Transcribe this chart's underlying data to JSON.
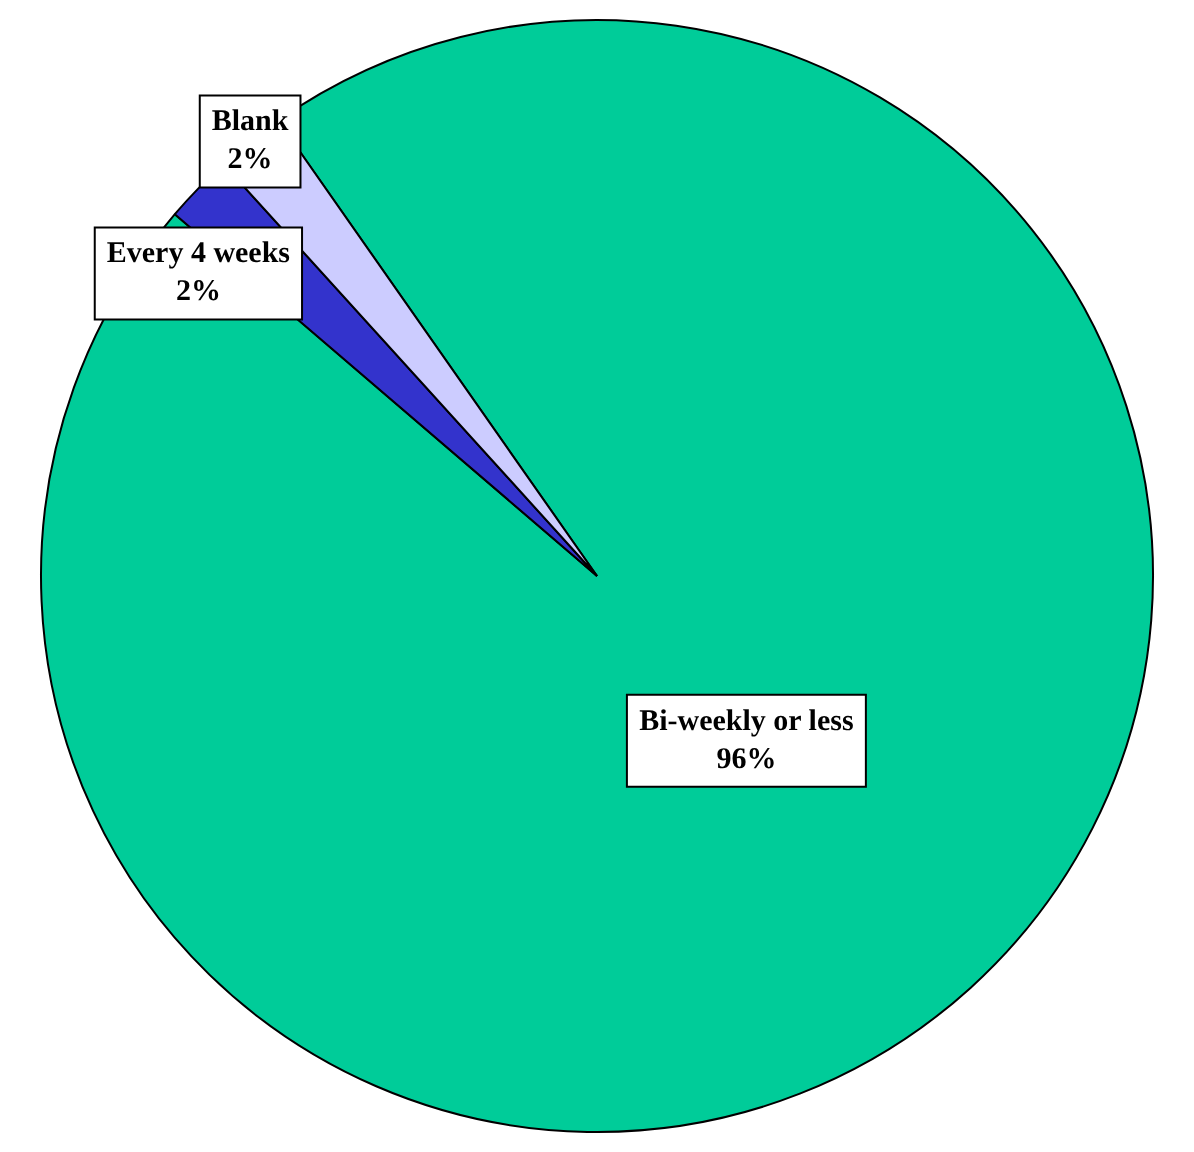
{
  "chart_data": {
    "type": "pie",
    "categories": [
      "Bi-weekly or less",
      "Every 4 weeks",
      "Blank"
    ],
    "values": [
      96,
      2,
      2
    ],
    "value_labels": [
      "96%",
      "2%",
      "2%"
    ],
    "colors": [
      "#00cc99",
      "#3333cc",
      "#ccccff"
    ],
    "legend": false
  }
}
